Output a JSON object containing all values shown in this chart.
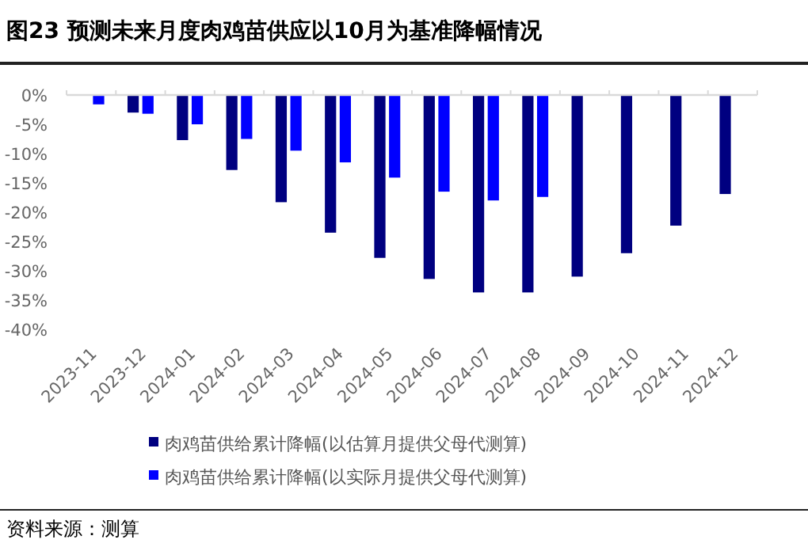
{
  "chart_data": {
    "type": "bar",
    "title": "图23 预测未来月度肉鸡苗供应以10月为基准降幅情况",
    "categories": [
      "2023-11",
      "2023-12",
      "2024-01",
      "2024-02",
      "2024-03",
      "2024-04",
      "2024-05",
      "2024-06",
      "2024-07",
      "2024-08",
      "2024-09",
      "2024-10",
      "2024-11",
      "2024-12"
    ],
    "series": [
      {
        "name": "肉鸡苗供给累计降幅(以估算月提供父母代测算)",
        "color": "#000080",
        "values": [
          0,
          -3.0,
          -7.7,
          -12.8,
          -18.3,
          -23.5,
          -27.8,
          -31.4,
          -33.7,
          -33.7,
          -31.0,
          -27.0,
          -22.3,
          -16.9
        ]
      },
      {
        "name": "肉鸡苗供给累计降幅(以实际月提供父母代测算)",
        "color": "#0000ff",
        "values": [
          -1.6,
          -3.2,
          -5.0,
          -7.5,
          -9.5,
          -11.5,
          -14.1,
          -16.5,
          -18.0,
          -17.4,
          null,
          null,
          null,
          null
        ]
      }
    ],
    "ylim": [
      -40,
      0
    ],
    "yticks": [
      {
        "value": 0,
        "label": "0%"
      },
      {
        "value": -5,
        "label": "-5%"
      },
      {
        "value": -10,
        "label": "-10%"
      },
      {
        "value": -15,
        "label": "-15%"
      },
      {
        "value": -20,
        "label": "-20%"
      },
      {
        "value": -25,
        "label": "-25%"
      },
      {
        "value": -30,
        "label": "-30%"
      },
      {
        "value": -35,
        "label": "-35%"
      },
      {
        "value": -40,
        "label": "-40%"
      }
    ],
    "legend": "bottom",
    "annotations": [
      "资料来源：测算"
    ]
  }
}
